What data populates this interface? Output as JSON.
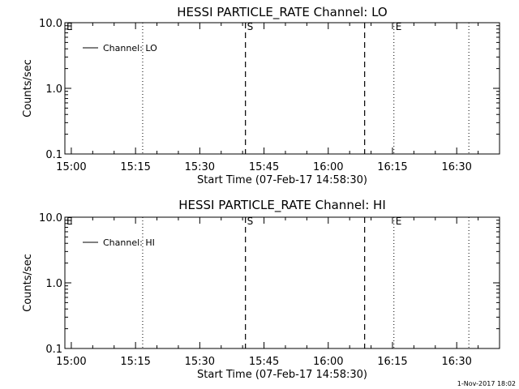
{
  "footer_timestamp": "1-Nov-2017 18:02",
  "chart_data": [
    {
      "type": "line",
      "title": "HESSI PARTICLE_RATE Channel: LO",
      "xlabel": "Start Time (07-Feb-17 14:58:30)",
      "ylabel": "Counts/sec",
      "yscale": "log",
      "ylim": [
        0.1,
        10.0
      ],
      "xlim": [
        "14:58:30",
        "16:40:00"
      ],
      "x_ticks": [
        "15:00",
        "15:15",
        "15:30",
        "15:45",
        "16:00",
        "16:15",
        "16:30"
      ],
      "y_ticks": [
        "0.1",
        "1.0",
        "10.0"
      ],
      "series": [
        {
          "name": "Channel: LO",
          "x": [],
          "y": []
        }
      ],
      "legend": "top-left",
      "markers": [
        {
          "time": "14:58:30",
          "style": "dotted",
          "label": "E"
        },
        {
          "time": "15:16:40",
          "style": "dotted",
          "label": ""
        },
        {
          "time": "15:40:40",
          "style": "dashed",
          "label": "S"
        },
        {
          "time": "16:08:30",
          "style": "dashed",
          "label": ""
        },
        {
          "time": "16:15:20",
          "style": "dotted",
          "label": "E"
        },
        {
          "time": "16:32:50",
          "style": "dotted",
          "label": ""
        }
      ]
    },
    {
      "type": "line",
      "title": "HESSI PARTICLE_RATE Channel: HI",
      "xlabel": "Start Time (07-Feb-17 14:58:30)",
      "ylabel": "Counts/sec",
      "yscale": "log",
      "ylim": [
        0.1,
        10.0
      ],
      "xlim": [
        "14:58:30",
        "16:40:00"
      ],
      "x_ticks": [
        "15:00",
        "15:15",
        "15:30",
        "15:45",
        "16:00",
        "16:15",
        "16:30"
      ],
      "y_ticks": [
        "0.1",
        "1.0",
        "10.0"
      ],
      "series": [
        {
          "name": "Channel: HI",
          "x": [],
          "y": []
        }
      ],
      "legend": "top-left",
      "markers": [
        {
          "time": "14:58:30",
          "style": "dotted",
          "label": "E"
        },
        {
          "time": "15:16:40",
          "style": "dotted",
          "label": ""
        },
        {
          "time": "15:40:40",
          "style": "dashed",
          "label": "S"
        },
        {
          "time": "16:08:30",
          "style": "dashed",
          "label": ""
        },
        {
          "time": "16:15:20",
          "style": "dotted",
          "label": "E"
        },
        {
          "time": "16:32:50",
          "style": "dotted",
          "label": ""
        }
      ]
    }
  ]
}
